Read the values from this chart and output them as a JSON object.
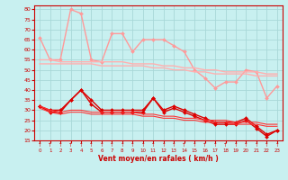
{
  "title": "",
  "xlabel": "Vent moyen/en rafales ( km/h )",
  "ylabel": "",
  "bg_color": "#c8f0f0",
  "grid_color": "#a8d8d8",
  "xlim": [
    -0.5,
    23.5
  ],
  "ylim": [
    15,
    82
  ],
  "yticks": [
    15,
    20,
    25,
    30,
    35,
    40,
    45,
    50,
    55,
    60,
    65,
    70,
    75,
    80
  ],
  "xticks": [
    0,
    1,
    2,
    3,
    4,
    5,
    6,
    7,
    8,
    9,
    10,
    11,
    12,
    13,
    14,
    15,
    16,
    17,
    18,
    19,
    20,
    21,
    22,
    23
  ],
  "series": [
    {
      "color": "#ff9999",
      "linewidth": 1.0,
      "marker": "D",
      "markersize": 2.0,
      "data": [
        66,
        55,
        55,
        80,
        78,
        55,
        54,
        68,
        68,
        59,
        65,
        65,
        65,
        62,
        59,
        50,
        46,
        41,
        44,
        44,
        50,
        49,
        36,
        42
      ]
    },
    {
      "color": "#ffb0b0",
      "linewidth": 1.0,
      "marker": null,
      "markersize": 0,
      "data": [
        55,
        55,
        54,
        54,
        54,
        54,
        54,
        54,
        54,
        53,
        53,
        53,
        52,
        52,
        51,
        51,
        50,
        50,
        49,
        49,
        49,
        49,
        48,
        48
      ]
    },
    {
      "color": "#ffb0b0",
      "linewidth": 1.0,
      "marker": null,
      "markersize": 0,
      "data": [
        53,
        53,
        53,
        53,
        53,
        53,
        52,
        52,
        52,
        52,
        52,
        51,
        51,
        50,
        50,
        49,
        49,
        48,
        48,
        48,
        48,
        47,
        47,
        47
      ]
    },
    {
      "color": "#dd0000",
      "linewidth": 1.0,
      "marker": "D",
      "markersize": 2.0,
      "data": [
        32,
        30,
        30,
        35,
        40,
        35,
        30,
        30,
        30,
        30,
        30,
        36,
        30,
        32,
        30,
        28,
        26,
        24,
        24,
        24,
        26,
        22,
        18,
        20
      ]
    },
    {
      "color": "#dd0000",
      "linewidth": 1.0,
      "marker": "D",
      "markersize": 2.0,
      "data": [
        32,
        29,
        29,
        35,
        40,
        33,
        29,
        29,
        29,
        29,
        29,
        36,
        29,
        31,
        29,
        27,
        25,
        23,
        23,
        23,
        25,
        21,
        17,
        20
      ]
    },
    {
      "color": "#ff3333",
      "linewidth": 0.8,
      "marker": null,
      "markersize": 0,
      "data": [
        32,
        30,
        29,
        30,
        30,
        29,
        29,
        29,
        29,
        29,
        28,
        28,
        27,
        27,
        26,
        26,
        25,
        25,
        25,
        24,
        24,
        24,
        23,
        23
      ]
    },
    {
      "color": "#ff3333",
      "linewidth": 0.8,
      "marker": null,
      "markersize": 0,
      "data": [
        31,
        29,
        28,
        29,
        29,
        28,
        28,
        28,
        28,
        28,
        27,
        27,
        26,
        26,
        25,
        25,
        24,
        24,
        24,
        23,
        23,
        23,
        22,
        22
      ]
    }
  ]
}
